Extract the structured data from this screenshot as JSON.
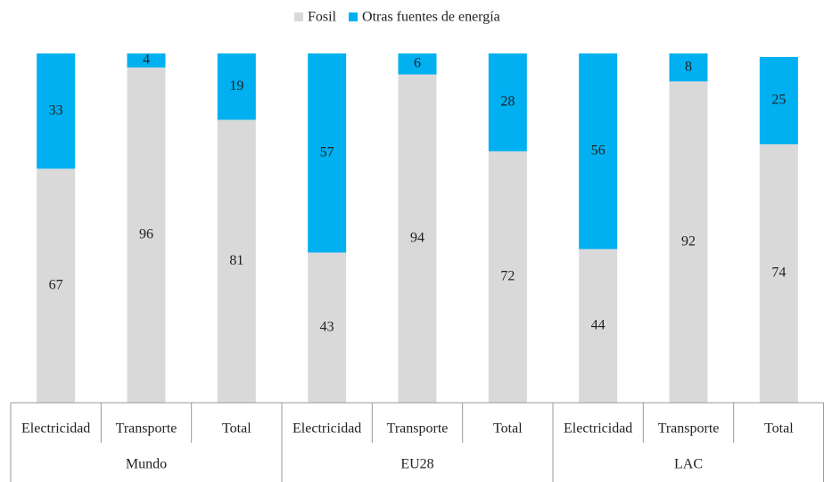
{
  "chart_data": {
    "type": "stacked_bar",
    "categories": [
      "Electricidad",
      "Transporte",
      "Total",
      "Electricidad",
      "Transporte",
      "Total",
      "Electricidad",
      "Transporte",
      "Total"
    ],
    "groups": [
      "Mundo",
      "EU28",
      "LAC"
    ],
    "series": [
      {
        "name": "Fosil",
        "color": "#d9d9d9",
        "values": [
          67,
          96,
          81,
          43,
          94,
          72,
          44,
          92,
          74
        ]
      },
      {
        "name": "Otras fuentes de energía",
        "color": "#00b0f0",
        "values": [
          33,
          4,
          19,
          57,
          6,
          28,
          56,
          8,
          25
        ]
      }
    ],
    "legend": "top"
  }
}
